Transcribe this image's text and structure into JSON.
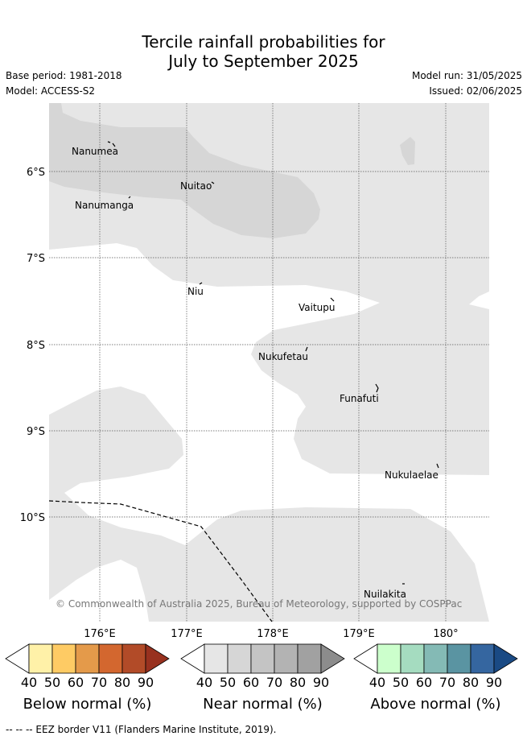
{
  "title_line1": "Tercile rainfall probabilities for",
  "title_line2": "July to September 2025",
  "base_period": "Base period: 1981-2018",
  "model": "Model: ACCESS-S2",
  "model_run": "Model run: 31/05/2025",
  "issued": "Issued: 02/06/2025",
  "lat_labels": [
    "6°S",
    "7°S",
    "8°S",
    "9°S",
    "10°S"
  ],
  "lon_labels": [
    "176°E",
    "177°E",
    "178°E",
    "179°E",
    "180°"
  ],
  "places": [
    "Nanumea",
    "Nuitao",
    "Nanumanga",
    "Niu",
    "Vaitupu",
    "Nukufetau",
    "Funafuti",
    "Nukulaelae",
    "Nuilakita"
  ],
  "copyright": "© Commonwealth of Australia 2025, Bureau of Meteorology, supported by COSPPac",
  "colorbars": [
    {
      "title": "Below normal (%)",
      "ticks": [
        "40",
        "50",
        "60",
        "70",
        "80",
        "90"
      ],
      "colors": [
        "#ffffff",
        "#fff1a8",
        "#fecb64",
        "#e49a4a",
        "#d3672f",
        "#b24b28",
        "#98311f"
      ]
    },
    {
      "title": "Near normal (%)",
      "ticks": [
        "40",
        "50",
        "60",
        "70",
        "80",
        "90"
      ],
      "colors": [
        "#ffffff",
        "#e6e6e6",
        "#d6d6d6",
        "#c4c4c4",
        "#b3b3b3",
        "#a1a1a1",
        "#8c8c8c"
      ]
    },
    {
      "title": "Above normal (%)",
      "ticks": [
        "40",
        "50",
        "60",
        "70",
        "80",
        "90"
      ],
      "colors": [
        "#ffffff",
        "#ccffcc",
        "#a5dcc0",
        "#84bab5",
        "#5a94a2",
        "#3566a0",
        "#1a4a84"
      ]
    }
  ],
  "footer": "-- -- -- EEZ border V11 (Flanders Marine Institute, 2019)."
}
